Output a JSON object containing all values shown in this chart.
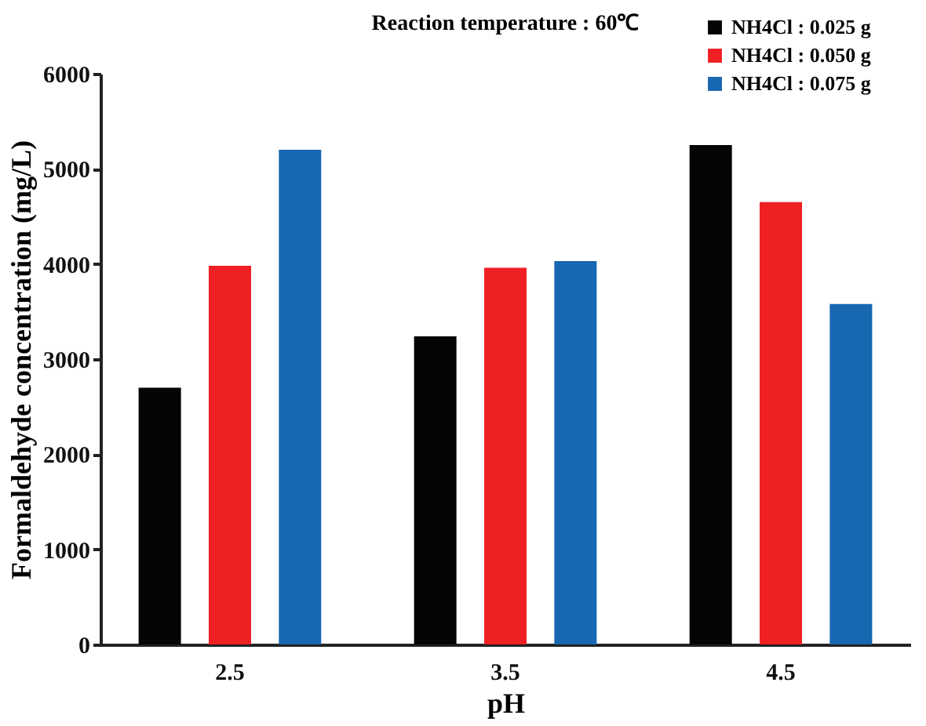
{
  "chart_data": {
    "type": "bar",
    "title": "Reaction temperature : 60℃",
    "xlabel": "pH",
    "ylabel": "Formaldehyde concentration (mg/L)",
    "categories": [
      "2.5",
      "3.5",
      "4.5"
    ],
    "series": [
      {
        "name": "NH4Cl : 0.025 g",
        "color": "#050505",
        "values": [
          2700,
          3240,
          5250
        ]
      },
      {
        "name": "NH4Cl : 0.050 g",
        "color": "#ee2024",
        "values": [
          3980,
          3960,
          4650
        ]
      },
      {
        "name": "NH4Cl : 0.075 g",
        "color": "#1767b1",
        "values": [
          5200,
          4030,
          3580
        ]
      }
    ],
    "ylim": [
      0,
      6000
    ],
    "yticks": [
      0,
      1000,
      2000,
      3000,
      4000,
      5000,
      6000
    ],
    "grid": false,
    "legend": "top right"
  }
}
